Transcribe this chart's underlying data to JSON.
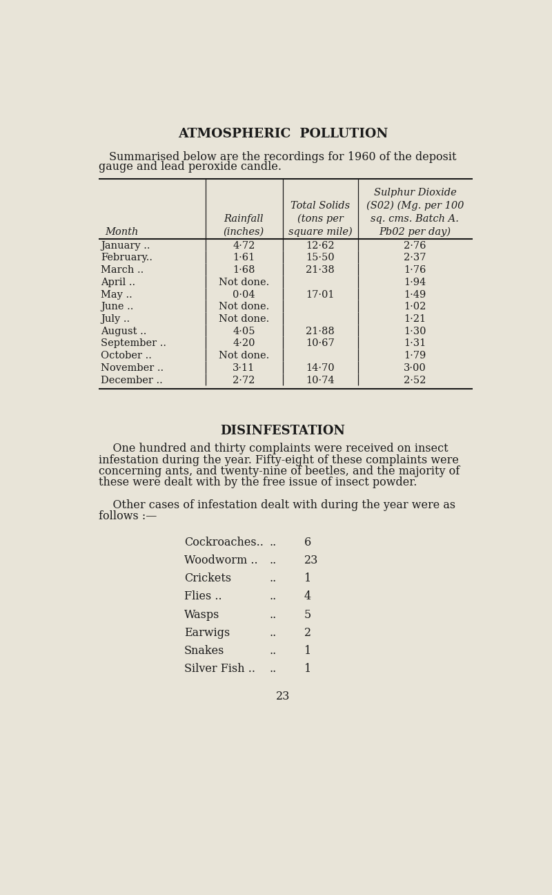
{
  "bg_color": "#e8e4d8",
  "text_color": "#1a1a1a",
  "title1": "ATMOSPHERIC  POLLUTION",
  "intro_line1": "Summarised below are the recordings for 1960 of the deposit",
  "intro_line2": "gauge and lead peroxide candle.",
  "col_header_month": "Month",
  "col_header_rainfall": "Rainfall\n(inches)",
  "col_header_solids": "Total Solids\n(tons per\nsquare mile)",
  "col_header_so2": "Sulphur Dioxide\n(S02) (Mg. per 100\nsq. cms. Batch A.\nPb02 per day)",
  "table_data": [
    [
      "January ..",
      "..",
      "4·72",
      "12·62",
      "2·76"
    ],
    [
      "February..",
      "..",
      "1·61",
      "15·50",
      "2·37"
    ],
    [
      "March ..",
      "..",
      "1·68",
      "21·38",
      "1·76"
    ],
    [
      "April ..",
      "..",
      "Not done.",
      "",
      "1·94"
    ],
    [
      "May ..",
      "..",
      "0·04",
      "17·01",
      "1·49"
    ],
    [
      "June ..",
      "..",
      "Not done.",
      "",
      "1·02"
    ],
    [
      "July ..",
      "..",
      "Not done.",
      "",
      "1·21"
    ],
    [
      "August ..",
      "..",
      "4·05",
      "21·88",
      "1·30"
    ],
    [
      "September ..",
      "..",
      "4·20",
      "10·67",
      "1·31"
    ],
    [
      "October ..",
      "..",
      "Not done.",
      "",
      "1·79"
    ],
    [
      "November ..",
      "..",
      "3·11",
      "14·70",
      "3·00"
    ],
    [
      "December ..",
      "..",
      "2·72",
      "10·74",
      "2·52"
    ]
  ],
  "title2": "DISINFESTATION",
  "disinfest_lines": [
    "    One hundred and thirty complaints were received on insect",
    "infestation during the year. Fifty-eight of these complaints were",
    "concerning ants, and twenty-nine of beetles, and the majority of",
    "these were dealt with by the free issue of insect powder."
  ],
  "other_lines": [
    "    Other cases of infestation dealt with during the year were as",
    "follows :—"
  ],
  "pest_list": [
    [
      "Cockroaches..",
      "..",
      "6"
    ],
    [
      "Woodworm ..",
      "..",
      "23"
    ],
    [
      "Crickets",
      "..",
      "1"
    ],
    [
      "Flies ..",
      "..",
      "4"
    ],
    [
      "Wasps",
      "..",
      "5"
    ],
    [
      "Earwigs",
      "..",
      "2"
    ],
    [
      "Snakes",
      "..",
      "1"
    ],
    [
      "Silver Fish ..",
      "..",
      "1"
    ]
  ],
  "page_number": "23"
}
